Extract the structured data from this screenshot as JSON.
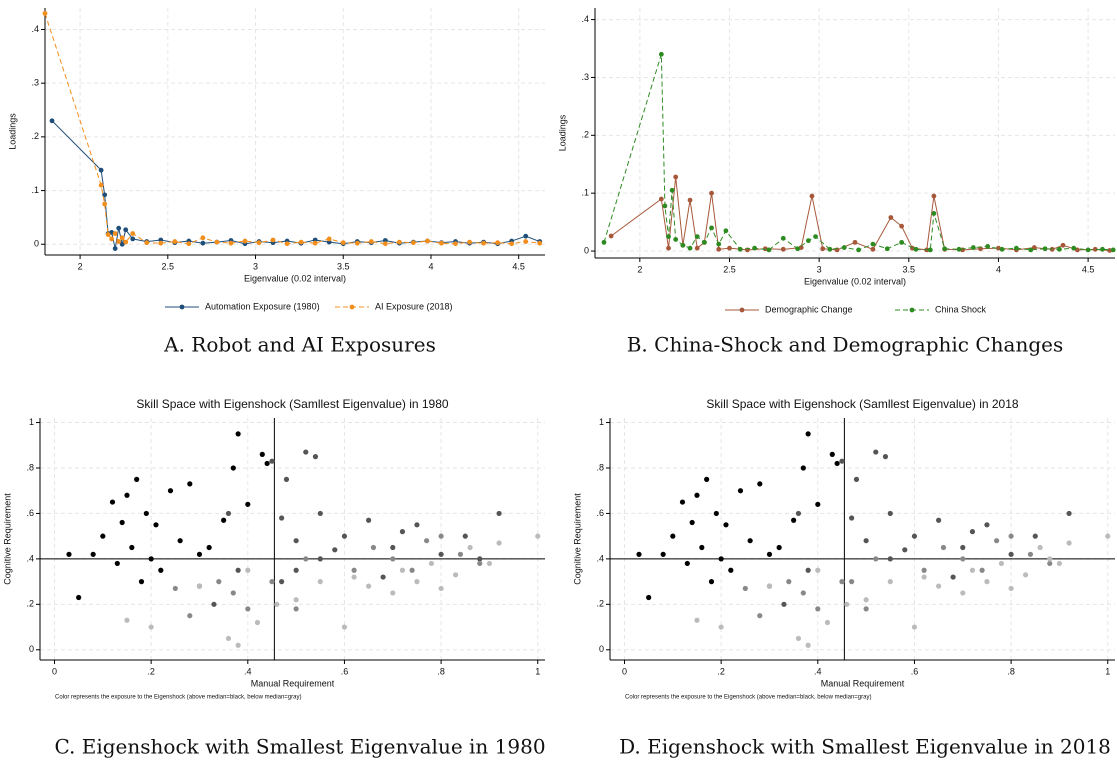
{
  "chart_data": [
    {
      "type": "line",
      "caption": "A. Robot and AI Exposures",
      "x_label": "Eigenvalue (0.02 interval)",
      "y_label": "Loadings",
      "xlim": [
        1.8,
        4.65
      ],
      "ylim": [
        -0.02,
        0.44
      ],
      "xticks": [
        2,
        2.5,
        3,
        3.5,
        4,
        4.5
      ],
      "yticks": [
        0,
        {
          "value": 0.1,
          "label": ".1"
        },
        {
          "value": 0.2,
          "label": ".2"
        },
        {
          "value": 0.3,
          "label": ".3"
        },
        {
          "value": 0.4,
          "label": ".4"
        }
      ],
      "grid": true,
      "series": [
        {
          "name": "Automation Exposure (1980)",
          "color": "#1f4e79",
          "dash": false,
          "x": [
            1.84,
            2.12,
            2.14,
            2.16,
            2.18,
            2.2,
            2.22,
            2.24,
            2.26,
            2.3,
            2.38,
            2.46,
            2.54,
            2.62,
            2.7,
            2.78,
            2.86,
            2.94,
            3.02,
            3.1,
            3.18,
            3.26,
            3.34,
            3.42,
            3.5,
            3.58,
            3.66,
            3.74,
            3.82,
            3.9,
            3.98,
            4.06,
            4.14,
            4.22,
            4.3,
            4.38,
            4.46,
            4.54,
            4.62
          ],
          "values": [
            0.23,
            0.138,
            0.092,
            0.02,
            0.022,
            -0.008,
            0.03,
            0,
            0.027,
            0.01,
            0.005,
            0.008,
            0.003,
            0.006,
            0.002,
            0.004,
            0.007,
            0.001,
            0.005,
            0.003,
            0.006,
            0.002,
            0.008,
            0.004,
            0.001,
            0.005,
            0.003,
            0.007,
            0.002,
            0.004,
            0.006,
            0.003,
            0.005,
            0.002,
            0.004,
            0.001,
            0.006,
            0.015,
            0.005
          ]
        },
        {
          "name": "AI Exposure (2018)",
          "color": "#f28e1c",
          "dash": true,
          "x": [
            1.8,
            2.12,
            2.14,
            2.16,
            2.18,
            2.2,
            2.22,
            2.24,
            2.26,
            2.3,
            2.38,
            2.46,
            2.54,
            2.62,
            2.7,
            2.78,
            2.86,
            2.94,
            3.02,
            3.1,
            3.18,
            3.26,
            3.34,
            3.42,
            3.5,
            3.58,
            3.66,
            3.74,
            3.82,
            3.9,
            3.98,
            4.06,
            4.14,
            4.22,
            4.3,
            4.38,
            4.46,
            4.54,
            4.62
          ],
          "values": [
            0.43,
            0.11,
            0.075,
            0.018,
            0.01,
            0.02,
            0.005,
            0.012,
            0.004,
            0.02,
            0.003,
            0.002,
            0.005,
            0.001,
            0.012,
            0.004,
            0.002,
            0.006,
            0.003,
            0.008,
            0.001,
            0.004,
            0.002,
            0.01,
            0.003,
            0.002,
            0.005,
            0.001,
            0.004,
            0.003,
            0.006,
            0.002,
            0.001,
            0.004,
            0.002,
            0.003,
            0.001,
            0.005,
            0.002
          ]
        }
      ]
    },
    {
      "type": "line",
      "caption": "B. China-Shock and Demographic Changes",
      "x_label": "Eigenvalue (0.02 interval)",
      "y_label": "Loadings",
      "xlim": [
        1.75,
        4.65
      ],
      "ylim": [
        -0.012,
        0.42
      ],
      "xticks": [
        2,
        2.5,
        3,
        3.5,
        4,
        4.5
      ],
      "yticks": [
        0,
        {
          "value": 0.1,
          "label": ".1"
        },
        {
          "value": 0.2,
          "label": ".2"
        },
        {
          "value": 0.3,
          "label": ".3"
        },
        {
          "value": 0.4,
          "label": ".4"
        }
      ],
      "grid": true,
      "series": [
        {
          "name": "Demographic Change",
          "color": "#a8583a",
          "dash": false,
          "x": [
            1.84,
            2.12,
            2.16,
            2.2,
            2.24,
            2.28,
            2.32,
            2.36,
            2.4,
            2.44,
            2.5,
            2.6,
            2.7,
            2.8,
            2.9,
            2.96,
            3.02,
            3.1,
            3.2,
            3.3,
            3.4,
            3.46,
            3.52,
            3.6,
            3.64,
            3.7,
            3.8,
            3.9,
            4.0,
            4.1,
            4.2,
            4.3,
            4.36,
            4.44,
            4.54,
            4.62
          ],
          "values": [
            0.026,
            0.09,
            0.005,
            0.128,
            0.01,
            0.088,
            0.005,
            0.015,
            0.1,
            0.003,
            0.005,
            0.002,
            0.004,
            0.003,
            0.006,
            0.095,
            0.004,
            0.002,
            0.015,
            0.003,
            0.058,
            0.043,
            0.005,
            0.002,
            0.095,
            0.003,
            0.002,
            0.004,
            0.005,
            0.002,
            0.006,
            0.003,
            0.01,
            0.002,
            0.003,
            0.001
          ]
        },
        {
          "name": "China Shock",
          "color": "#2e8b22",
          "dash": true,
          "x": [
            1.8,
            2.12,
            2.14,
            2.16,
            2.18,
            2.2,
            2.24,
            2.28,
            2.32,
            2.36,
            2.4,
            2.44,
            2.48,
            2.56,
            2.64,
            2.72,
            2.8,
            2.88,
            2.94,
            2.98,
            3.06,
            3.14,
            3.22,
            3.3,
            3.38,
            3.46,
            3.54,
            3.62,
            3.64,
            3.7,
            3.78,
            3.86,
            3.94,
            4.02,
            4.1,
            4.18,
            4.26,
            4.34,
            4.42,
            4.5,
            4.58,
            4.64
          ],
          "values": [
            0.015,
            0.34,
            0.078,
            0.025,
            0.105,
            0.02,
            0.01,
            0.005,
            0.025,
            0.015,
            0.04,
            0.012,
            0.035,
            0.003,
            0.005,
            0.002,
            0.022,
            0.004,
            0.018,
            0.025,
            0.003,
            0.006,
            0.002,
            0.012,
            0.004,
            0.015,
            0.003,
            0.002,
            0.065,
            0.004,
            0.003,
            0.006,
            0.008,
            0.003,
            0.005,
            0.002,
            0.004,
            0.003,
            0.005,
            0.002,
            0.003,
            0.002
          ]
        }
      ]
    },
    {
      "type": "scatter",
      "caption": "C. Eigenshock with Smallest Eigenvalue in 1980",
      "title": "Skill Space with Eigenshock (Samllest Eigenvalue) in 1980",
      "x_label": "Manual Requirement",
      "y_label": "Cognitive Requirement",
      "note": "Color represents the exposure to the Eigenshock (above median=black, below median=gray)",
      "xlim": [
        -0.03,
        1.015
      ],
      "ylim": [
        -0.045,
        1.02
      ],
      "vline": 0.455,
      "hline": 0.4,
      "xticks": [
        0,
        {
          "value": 0.2,
          "label": ".2"
        },
        {
          "value": 0.4,
          "label": ".4"
        },
        {
          "value": 0.6,
          "label": ".6"
        },
        {
          "value": 0.8,
          "label": ".8"
        },
        1
      ],
      "yticks": [
        0,
        {
          "value": 0.2,
          "label": ".2"
        },
        {
          "value": 0.4,
          "label": ".4"
        },
        {
          "value": 0.6,
          "label": ".6"
        },
        {
          "value": 0.8,
          "label": ".8"
        },
        1
      ],
      "grid": true,
      "series": [
        {
          "color": "#000000",
          "x": [
            0.03,
            0.05,
            0.08,
            0.1,
            0.12,
            0.13,
            0.14,
            0.15,
            0.16,
            0.17,
            0.18,
            0.19,
            0.2,
            0.21,
            0.22,
            0.24,
            0.26,
            0.28,
            0.3,
            0.32,
            0.35,
            0.37,
            0.38,
            0.4,
            0.43,
            0.44
          ],
          "values": [
            0.42,
            0.23,
            0.42,
            0.5,
            0.65,
            0.38,
            0.56,
            0.68,
            0.45,
            0.75,
            0.3,
            0.6,
            0.4,
            0.55,
            0.35,
            0.7,
            0.48,
            0.73,
            0.42,
            0.45,
            0.57,
            0.8,
            0.95,
            0.64,
            0.86,
            0.82
          ]
        },
        {
          "color": "#555555",
          "x": [
            0.3,
            0.33,
            0.36,
            0.38,
            0.45,
            0.47,
            0.48,
            0.5,
            0.5,
            0.52,
            0.54,
            0.55,
            0.58,
            0.6,
            0.65,
            0.68,
            0.7,
            0.72,
            0.75,
            0.8,
            0.85,
            0.88,
            0.92,
            0.47,
            0.55
          ],
          "values": [
            0.28,
            0.2,
            0.6,
            0.35,
            0.83,
            0.3,
            0.75,
            0.48,
            0.35,
            0.87,
            0.85,
            0.6,
            0.44,
            0.5,
            0.57,
            0.32,
            0.45,
            0.52,
            0.55,
            0.42,
            0.5,
            0.4,
            0.6,
            0.58,
            0.4
          ]
        },
        {
          "color": "#888888",
          "x": [
            0.25,
            0.28,
            0.34,
            0.37,
            0.4,
            0.45,
            0.5,
            0.52,
            0.62,
            0.66,
            0.7,
            0.74,
            0.77,
            0.8,
            0.84,
            0.88
          ],
          "values": [
            0.27,
            0.15,
            0.3,
            0.25,
            0.18,
            0.3,
            0.18,
            0.4,
            0.35,
            0.45,
            0.4,
            0.35,
            0.48,
            0.5,
            0.42,
            0.38
          ]
        },
        {
          "color": "#bbbbbb",
          "x": [
            0.15,
            0.2,
            0.3,
            0.36,
            0.38,
            0.4,
            0.42,
            0.46,
            0.5,
            0.55,
            0.6,
            0.62,
            0.65,
            0.7,
            0.72,
            0.75,
            0.78,
            0.8,
            0.83,
            0.86,
            0.9,
            0.92,
            1.0
          ],
          "values": [
            0.13,
            0.1,
            0.28,
            0.05,
            0.02,
            0.35,
            0.12,
            0.2,
            0.22,
            0.3,
            0.1,
            0.32,
            0.28,
            0.25,
            0.35,
            0.3,
            0.38,
            0.27,
            0.33,
            0.45,
            0.38,
            0.47,
            0.5
          ]
        }
      ]
    },
    {
      "type": "scatter",
      "caption": "D. Eigenshock with Smallest Eigenvalue in 2018",
      "title": "Skill Space with Eigenshock (Samllest Eigenvalue) in 2018",
      "x_label": "Manual Requirement",
      "y_label": "Cognitive Requirement",
      "note": "Color represents the exposure to the Eigenshock (above median=black, below median=gray)",
      "xlim": [
        -0.03,
        1.015
      ],
      "ylim": [
        -0.045,
        1.02
      ],
      "vline": 0.455,
      "hline": 0.4,
      "xticks": [
        0,
        {
          "value": 0.2,
          "label": ".2"
        },
        {
          "value": 0.4,
          "label": ".4"
        },
        {
          "value": 0.6,
          "label": ".6"
        },
        {
          "value": 0.8,
          "label": ".8"
        },
        1
      ],
      "yticks": [
        0,
        {
          "value": 0.2,
          "label": ".2"
        },
        {
          "value": 0.4,
          "label": ".4"
        },
        {
          "value": 0.6,
          "label": ".6"
        },
        {
          "value": 0.8,
          "label": ".8"
        },
        1
      ],
      "grid": true,
      "series": [
        {
          "color": "#000000",
          "x": [
            0.03,
            0.05,
            0.08,
            0.1,
            0.12,
            0.13,
            0.14,
            0.15,
            0.16,
            0.17,
            0.18,
            0.19,
            0.2,
            0.21,
            0.22,
            0.24,
            0.26,
            0.28,
            0.3,
            0.32,
            0.35,
            0.37,
            0.38,
            0.4,
            0.43,
            0.44
          ],
          "values": [
            0.42,
            0.23,
            0.42,
            0.5,
            0.65,
            0.38,
            0.56,
            0.68,
            0.45,
            0.75,
            0.3,
            0.6,
            0.4,
            0.55,
            0.35,
            0.7,
            0.48,
            0.73,
            0.42,
            0.45,
            0.57,
            0.8,
            0.95,
            0.64,
            0.86,
            0.82
          ]
        },
        {
          "color": "#555555",
          "x": [
            0.3,
            0.33,
            0.36,
            0.38,
            0.45,
            0.48,
            0.5,
            0.52,
            0.54,
            0.55,
            0.58,
            0.6,
            0.65,
            0.68,
            0.7,
            0.72,
            0.75,
            0.8,
            0.85,
            0.92,
            0.47,
            0.55
          ],
          "values": [
            0.28,
            0.2,
            0.6,
            0.35,
            0.83,
            0.75,
            0.48,
            0.87,
            0.85,
            0.6,
            0.44,
            0.5,
            0.57,
            0.32,
            0.45,
            0.52,
            0.55,
            0.42,
            0.5,
            0.6,
            0.58,
            0.4
          ]
        },
        {
          "color": "#888888",
          "x": [
            0.25,
            0.28,
            0.34,
            0.37,
            0.4,
            0.45,
            0.47,
            0.5,
            0.52,
            0.62,
            0.66,
            0.7,
            0.74,
            0.77,
            0.8,
            0.84,
            0.88
          ],
          "values": [
            0.27,
            0.15,
            0.3,
            0.25,
            0.18,
            0.3,
            0.3,
            0.18,
            0.4,
            0.35,
            0.45,
            0.4,
            0.35,
            0.48,
            0.5,
            0.42,
            0.38
          ]
        },
        {
          "color": "#bbbbbb",
          "x": [
            0.15,
            0.2,
            0.3,
            0.36,
            0.38,
            0.4,
            0.42,
            0.46,
            0.5,
            0.55,
            0.6,
            0.62,
            0.65,
            0.7,
            0.72,
            0.75,
            0.78,
            0.8,
            0.83,
            0.86,
            0.88,
            0.9,
            0.92,
            1.0
          ],
          "values": [
            0.13,
            0.1,
            0.28,
            0.05,
            0.02,
            0.35,
            0.12,
            0.2,
            0.22,
            0.3,
            0.1,
            0.32,
            0.28,
            0.25,
            0.35,
            0.3,
            0.38,
            0.27,
            0.33,
            0.45,
            0.4,
            0.38,
            0.47,
            0.5
          ]
        }
      ]
    }
  ]
}
